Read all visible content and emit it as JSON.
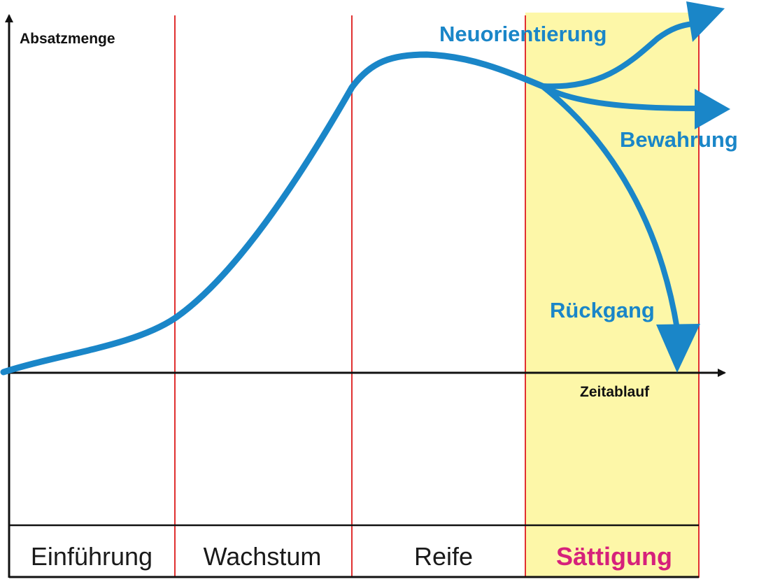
{
  "axes": {
    "y_label": "Absatzmenge",
    "x_label": "Zeitablauf"
  },
  "branches": [
    {
      "id": "neuorientierung",
      "label": "Neuorientierung"
    },
    {
      "id": "bewahrung",
      "label": "Bewahrung"
    },
    {
      "id": "rueckgang",
      "label": "Rückgang"
    }
  ],
  "phases": [
    {
      "id": "einfuehrung",
      "label": "Einführung"
    },
    {
      "id": "wachstum",
      "label": "Wachstum"
    },
    {
      "id": "reife",
      "label": "Reife"
    },
    {
      "id": "saettigung",
      "label": "Sättigung"
    }
  ],
  "colors": {
    "curve": "#1a86c8",
    "divider": "#e03030",
    "highlight_fill": "#fdf7a8",
    "highlight_text": "#d6217b",
    "axis": "#111111"
  }
}
